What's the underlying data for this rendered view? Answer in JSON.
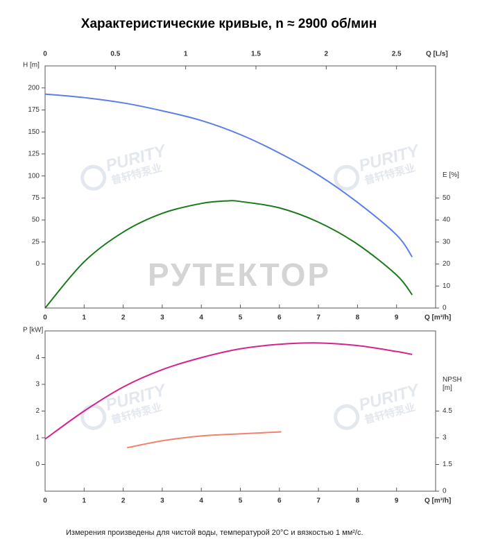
{
  "watermark": "РУТЕКТОР",
  "logo": "PURITY",
  "logo_sub": "普轩特泵业",
  "note": "Измерения произведены для чистой воды, температурой 20°C и вязкостью 1 мм²/с.",
  "chart_data": [
    {
      "type": "line",
      "title": "Характеристические кривые, n ≈ 2900 об/мин",
      "x_label": "Q [m³/h]",
      "x2_label": "Q [L/s]",
      "y_label": "H [m]",
      "y2_label": [
        "E [%]"
      ],
      "xlim": [
        0,
        10
      ],
      "xticks": [
        0,
        1,
        2,
        3,
        4,
        5,
        6,
        7,
        8,
        9
      ],
      "x2lim": [
        0,
        2.778
      ],
      "x2ticks": [
        0,
        0.5,
        1,
        1.5,
        2,
        2.5
      ],
      "ylim": [
        -50,
        225
      ],
      "yticks": [
        0,
        25,
        50,
        75,
        100,
        125,
        150,
        175,
        200
      ],
      "y_color": "#4a6fd4",
      "y2lim": [
        0,
        110
      ],
      "y2ticks": [
        0,
        10,
        20,
        30,
        40,
        50
      ],
      "y2_color": "#1f7a1f",
      "grid": false,
      "series": [
        {
          "x": [
            0,
            1,
            2,
            3,
            4,
            5,
            6,
            7,
            8,
            9,
            9.4
          ],
          "values": [
            193,
            189,
            183,
            174,
            163,
            147,
            126,
            101,
            70,
            33,
            8
          ],
          "color": "#5b7fe8"
        },
        {
          "x": [
            0,
            1,
            2,
            3,
            4,
            4.7,
            5,
            6,
            7,
            8,
            9,
            9.4
          ],
          "values": [
            0,
            21,
            34.5,
            43,
            47.5,
            48.7,
            48.4,
            45.5,
            39,
            29,
            15,
            6
          ],
          "color": "#1a7a1a",
          "axis": "y2"
        }
      ]
    },
    {
      "type": "line",
      "x_label": "Q [m³/h]",
      "y_label": "P [kW]",
      "y2_label": [
        "NPSH",
        "[m]"
      ],
      "xlim": [
        0,
        10
      ],
      "xticks": [
        0,
        1,
        2,
        3,
        4,
        5,
        6,
        7,
        8,
        9
      ],
      "ylim": [
        -1,
        5
      ],
      "yticks": [
        0,
        1,
        2,
        3,
        4
      ],
      "y_color": "#d6218e",
      "y2lim": [
        0,
        9
      ],
      "y2ticks": [
        0,
        1.5,
        3,
        4.5
      ],
      "y2_color": "#f0826e",
      "grid": false,
      "series": [
        {
          "x": [
            0,
            1,
            2,
            3,
            4,
            5,
            6,
            7,
            8,
            9,
            9.4
          ],
          "values": [
            0.95,
            2.0,
            2.9,
            3.55,
            4.0,
            4.33,
            4.5,
            4.55,
            4.45,
            4.23,
            4.12
          ],
          "color": "#d6218e"
        },
        {
          "x": [
            2.1,
            3,
            4,
            5,
            6.05
          ],
          "values": [
            2.44,
            2.83,
            3.1,
            3.22,
            3.33
          ],
          "color": "#f0826e",
          "axis": "y2"
        }
      ]
    }
  ]
}
